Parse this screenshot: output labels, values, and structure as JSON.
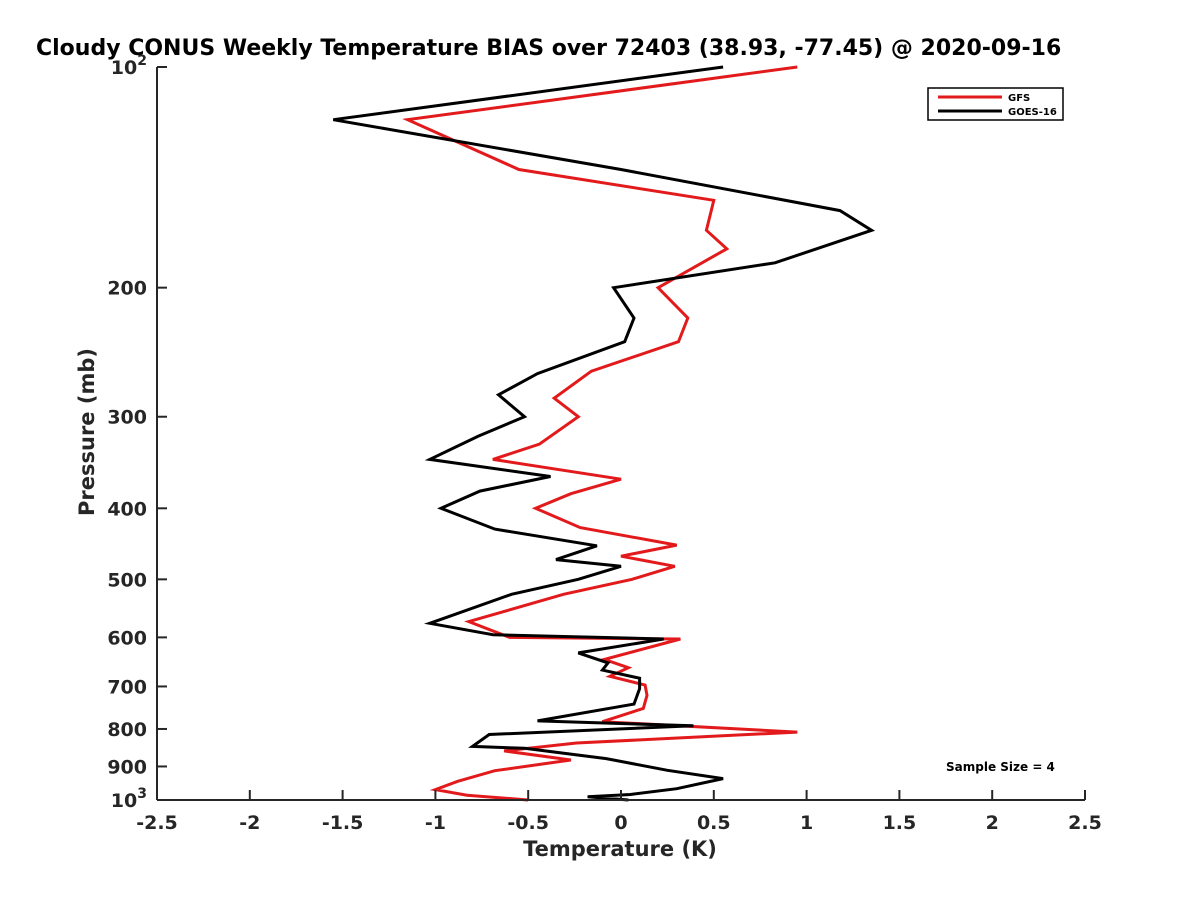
{
  "chart_data": {
    "type": "line",
    "title": "Cloudy CONUS Weekly Temperature BIAS over 72403 (38.93, -77.45) @ 2020-09-16",
    "xlabel": "Temperature (K)",
    "ylabel": "Pressure (mb)",
    "xlim": [
      -2.5,
      2.5
    ],
    "ylim": [
      100,
      1000
    ],
    "yscale": "log",
    "y_reversed": true,
    "x_ticks": [
      "-2.5",
      "-2",
      "-1.5",
      "-1",
      "-0.5",
      "0",
      "0.5",
      "1",
      "1.5",
      "2",
      "2.5"
    ],
    "x_tick_values": [
      -2.5,
      -2,
      -1.5,
      -1,
      -0.5,
      0,
      0.5,
      1,
      1.5,
      2,
      2.5
    ],
    "y_ticks": [
      {
        "value": 100,
        "base": "10",
        "exp": "2"
      },
      {
        "value": 200,
        "label": "200"
      },
      {
        "value": 300,
        "label": "300"
      },
      {
        "value": 400,
        "label": "400"
      },
      {
        "value": 500,
        "label": "500"
      },
      {
        "value": 600,
        "label": "600"
      },
      {
        "value": 700,
        "label": "700"
      },
      {
        "value": 800,
        "label": "800"
      },
      {
        "value": 900,
        "label": "900"
      },
      {
        "value": 1000,
        "base": "10",
        "exp": "3"
      }
    ],
    "legend_position": "top-right",
    "grid": false,
    "annotation": "Sample Size = 4",
    "series": [
      {
        "name": "GFS",
        "color": "#e31a1c",
        "x": [
          0.95,
          -1.15,
          -0.55,
          0.5,
          0.46,
          0.57,
          0.2,
          0.36,
          0.31,
          -0.16,
          -0.36,
          -0.23,
          -0.44,
          -0.69,
          0.0,
          -0.27,
          -0.46,
          -0.22,
          0.3,
          0.0,
          0.29,
          0.06,
          -0.31,
          -0.82,
          -0.6,
          0.32,
          -0.09,
          0.04,
          -0.06,
          0.13,
          0.14,
          0.12,
          -0.1,
          0.95,
          -0.24,
          -0.63,
          -0.27,
          -0.68,
          -0.88,
          -1.0,
          -0.83,
          -0.5
        ],
        "y": [
          100,
          118,
          138,
          152,
          167,
          177,
          200,
          220,
          237,
          260,
          283,
          300,
          327,
          343,
          365,
          382,
          400,
          425,
          449,
          465,
          480,
          500,
          524,
          571,
          600,
          603,
          643,
          660,
          678,
          697,
          720,
          750,
          782,
          808,
          836,
          857,
          882,
          912,
          943,
          968,
          985,
          1000
        ]
      },
      {
        "name": "GOES-16",
        "color": "#000000",
        "x": [
          0.55,
          -1.55,
          0.0,
          1.18,
          1.35,
          0.83,
          -0.04,
          0.07,
          0.02,
          -0.45,
          -0.66,
          -0.52,
          -0.77,
          -1.03,
          -0.38,
          -0.76,
          -0.97,
          -0.68,
          -0.13,
          -0.35,
          0.0,
          -0.23,
          -0.59,
          -1.03,
          -0.69,
          0.23,
          -0.23,
          -0.07,
          -0.1,
          0.1,
          0.1,
          0.07,
          -0.45,
          0.39,
          -0.71,
          -0.8,
          -0.52,
          -0.08,
          0.25,
          0.55,
          0.3,
          0.05,
          -0.18,
          0.04
        ],
        "y": [
          100,
          118,
          138,
          157,
          167,
          185,
          200,
          220,
          237,
          262,
          280,
          300,
          319,
          343,
          362,
          379,
          400,
          427,
          450,
          470,
          480,
          500,
          524,
          574,
          595,
          603,
          630,
          650,
          665,
          682,
          705,
          740,
          780,
          792,
          814,
          845,
          850,
          878,
          911,
          935,
          965,
          983,
          990,
          1000
        ]
      }
    ]
  }
}
